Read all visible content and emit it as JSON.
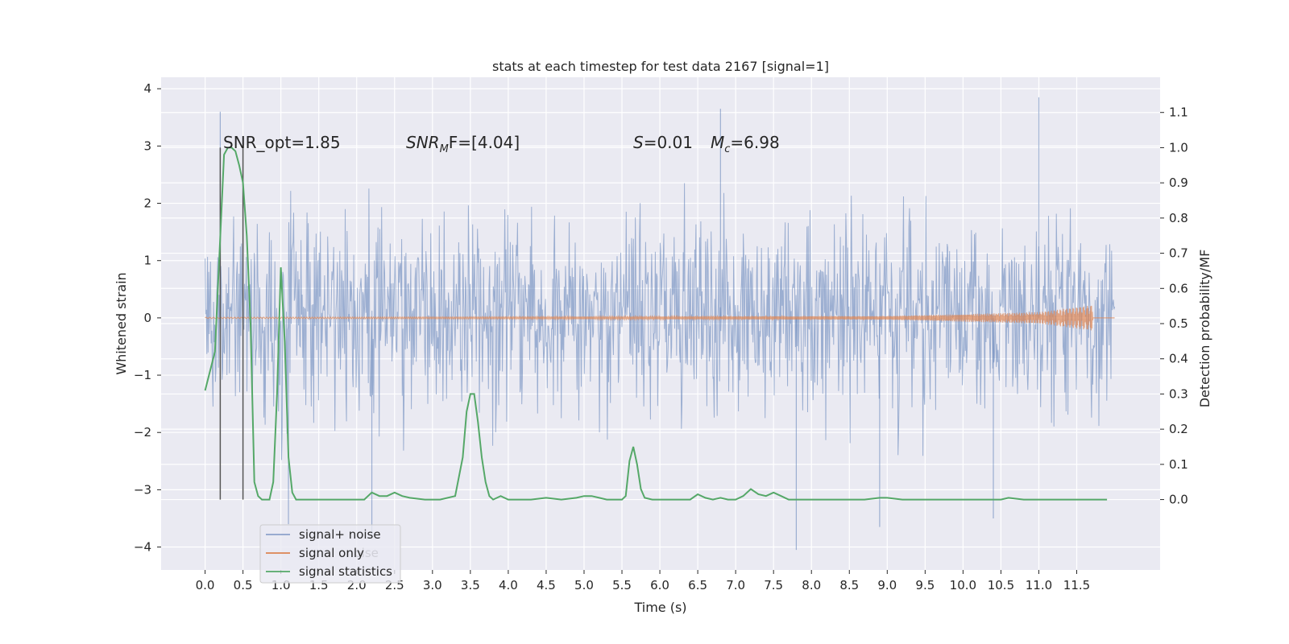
{
  "chart_data": {
    "type": "line",
    "title": "stats at each timestep for test data 2167 [signal=1]",
    "xlabel": "Time (s)",
    "ylabel": "Whitened strain",
    "ylabel_right": "Detection probability/MF",
    "xlim": [
      -0.58,
      12.6
    ],
    "ylim": [
      -4.4,
      4.2
    ],
    "ylim_right": [
      -0.2,
      1.2
    ],
    "x_ticks": [
      "0.0",
      "0.5",
      "1.0",
      "1.5",
      "2.0",
      "2.5",
      "3.0",
      "3.5",
      "4.0",
      "4.5",
      "5.0",
      "5.5",
      "6.0",
      "6.5",
      "7.0",
      "7.5",
      "8.0",
      "8.5",
      "9.0",
      "9.5",
      "10.0",
      "10.5",
      "11.0",
      "11.5"
    ],
    "y_ticks": [
      "4",
      "3",
      "2",
      "1",
      "0",
      "−1",
      "−2",
      "−3",
      "−4"
    ],
    "y_ticks_right": [
      "1.1",
      "1.0",
      "0.9",
      "0.8",
      "0.7",
      "0.6",
      "0.5",
      "0.4",
      "0.3",
      "0.2",
      "0.1",
      "0.0"
    ],
    "grid": true,
    "legend_placement": "lower-left",
    "annotations": {
      "snr_opt": "SNR_opt=1.85",
      "snr_mf_sym": "SNR",
      "snr_mf_sub": "M",
      "snr_mf_rest": "F=[4.04]",
      "s_sym": "S",
      "s_rest": "=0.01",
      "mc_sym": "M",
      "mc_sub": "c",
      "mc_rest": "=6.98"
    },
    "legend_ghost": "noise",
    "vertical_markers": [
      0.2,
      0.5
    ],
    "series": [
      {
        "name": "signal+ noise",
        "color": "#4c72b0",
        "x_range": [
          0.0,
          12.0
        ],
        "envelope_upper": 2.2,
        "envelope_lower": -2.2,
        "notable_peaks": [
          [
            0.2,
            3.6
          ],
          [
            6.8,
            3.65
          ],
          [
            11.0,
            3.85
          ],
          [
            1.1,
            -3.6
          ],
          [
            2.2,
            -3.8
          ],
          [
            7.8,
            -4.05
          ],
          [
            8.9,
            -3.65
          ],
          [
            10.4,
            -3.5
          ]
        ]
      },
      {
        "name": "signal only",
        "color": "#dd8452",
        "x_range": [
          0.0,
          12.0
        ],
        "description_values": [
          [
            0.0,
            0.01
          ],
          [
            9.0,
            0.03
          ],
          [
            11.0,
            0.1
          ],
          [
            11.7,
            0.22
          ],
          [
            11.72,
            0.0
          ]
        ]
      },
      {
        "name": "signal statistics",
        "color": "#55a868",
        "axis": "right",
        "x": [
          0.0,
          0.13,
          0.25,
          0.3,
          0.35,
          0.4,
          0.45,
          0.5,
          0.55,
          0.6,
          0.65,
          0.7,
          0.75,
          0.8,
          0.85,
          0.9,
          0.95,
          1.0,
          1.05,
          1.1,
          1.15,
          1.2,
          1.25,
          1.3,
          1.4,
          1.5,
          1.7,
          1.9,
          2.1,
          2.2,
          2.3,
          2.4,
          2.5,
          2.6,
          2.7,
          2.9,
          3.1,
          3.3,
          3.4,
          3.45,
          3.5,
          3.55,
          3.6,
          3.65,
          3.7,
          3.75,
          3.8,
          3.9,
          4.0,
          4.1,
          4.3,
          4.5,
          4.7,
          4.9,
          5.0,
          5.1,
          5.2,
          5.3,
          5.4,
          5.5,
          5.55,
          5.6,
          5.65,
          5.7,
          5.75,
          5.8,
          5.9,
          6.0,
          6.2,
          6.4,
          6.5,
          6.6,
          6.7,
          6.8,
          6.9,
          7.0,
          7.1,
          7.2,
          7.3,
          7.4,
          7.5,
          7.6,
          7.7,
          7.8,
          8.0,
          8.2,
          8.5,
          8.7,
          8.9,
          9.0,
          9.2,
          9.5,
          10.0,
          10.3,
          10.5,
          10.6,
          10.8,
          11.0,
          11.5,
          11.9
        ],
        "y": [
          0.31,
          0.42,
          0.98,
          1.0,
          1.0,
          0.99,
          0.95,
          0.9,
          0.75,
          0.5,
          0.05,
          0.01,
          0.0,
          0.0,
          0.0,
          0.05,
          0.3,
          0.66,
          0.45,
          0.12,
          0.02,
          0.0,
          0.0,
          0.0,
          0.0,
          0.0,
          0.0,
          0.0,
          0.0,
          0.02,
          0.01,
          0.01,
          0.02,
          0.01,
          0.005,
          0.0,
          0.0,
          0.01,
          0.12,
          0.25,
          0.3,
          0.3,
          0.22,
          0.12,
          0.05,
          0.01,
          0.0,
          0.01,
          0.0,
          0.0,
          0.0,
          0.005,
          0.0,
          0.005,
          0.01,
          0.01,
          0.005,
          0.0,
          0.0,
          0.0,
          0.01,
          0.11,
          0.15,
          0.1,
          0.03,
          0.005,
          0.0,
          0.0,
          0.0,
          0.0,
          0.015,
          0.005,
          0.0,
          0.005,
          0.0,
          0.0,
          0.01,
          0.03,
          0.015,
          0.01,
          0.02,
          0.01,
          0.0,
          0.0,
          0.0,
          0.0,
          0.0,
          0.0,
          0.005,
          0.005,
          0.0,
          0.0,
          0.0,
          0.0,
          0.0,
          0.005,
          0.0,
          0.0,
          0.0,
          0.0
        ]
      }
    ]
  }
}
